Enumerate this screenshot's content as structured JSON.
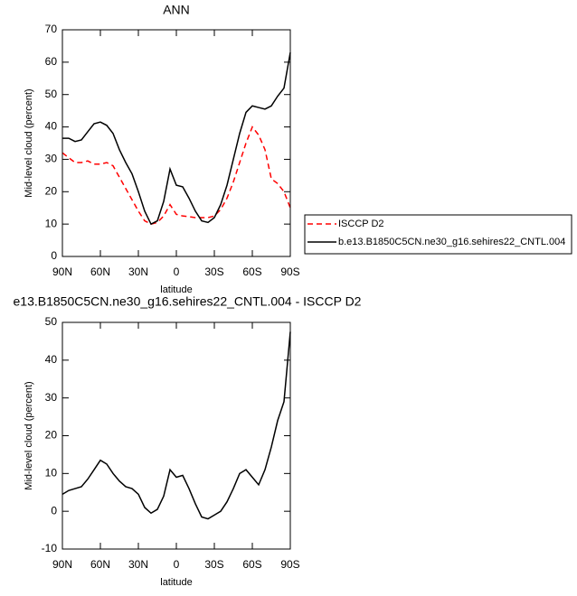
{
  "chart_data": [
    {
      "type": "line",
      "title": "ANN",
      "xlabel": "latitude",
      "ylabel": "Mid-level cloud (percent)",
      "x": [
        90,
        85,
        80,
        75,
        70,
        65,
        60,
        55,
        50,
        45,
        40,
        35,
        30,
        25,
        20,
        15,
        10,
        5,
        0,
        -5,
        -10,
        -15,
        -20,
        -25,
        -30,
        -35,
        -40,
        -45,
        -50,
        -55,
        -60,
        -65,
        -70,
        -75,
        -80,
        -85,
        -90
      ],
      "xlim": [
        90,
        -90
      ],
      "xticks": [
        {
          "value": 90,
          "label": "90N"
        },
        {
          "value": 60,
          "label": "60N"
        },
        {
          "value": 30,
          "label": "30N"
        },
        0,
        {
          "value": -30,
          "label": "30S"
        },
        {
          "value": -60,
          "label": "60S"
        },
        {
          "value": -90,
          "label": "90S"
        }
      ],
      "ylim": [
        0,
        70
      ],
      "yticks": [
        0,
        10,
        20,
        30,
        40,
        50,
        60,
        70
      ],
      "legend": "outside-right",
      "series": [
        {
          "name": "ISCCP D2",
          "color": "#ff0000",
          "dash": true,
          "values": [
            32,
            30.5,
            29,
            29,
            29.5,
            28.5,
            28.5,
            29,
            28,
            24.5,
            21,
            17.5,
            14,
            11,
            10,
            10.5,
            12.5,
            16,
            13,
            12.5,
            12.3,
            12,
            12,
            12,
            12.5,
            14.5,
            18,
            23,
            29,
            35,
            40,
            37.5,
            33,
            24,
            22.5,
            20,
            15
          ]
        },
        {
          "name": "b.e13.B1850C5CN.ne30_g16.sehires22_CNTL.004",
          "color": "#000000",
          "dash": false,
          "values": [
            36.5,
            36.5,
            35.5,
            36,
            38.5,
            41,
            41.5,
            40.5,
            38,
            33,
            29,
            25.5,
            20,
            14,
            10,
            11,
            17,
            27,
            22,
            21.5,
            18,
            14,
            11,
            10.5,
            12,
            16,
            22,
            30,
            38,
            44.5,
            46.5,
            46,
            45.5,
            46.5,
            49.5,
            52,
            63
          ]
        }
      ]
    },
    {
      "type": "line",
      "title": "e13.B1850C5CN.ne30_g16.sehires22_CNTL.004 - ISCCP D2",
      "xlabel": "latitude",
      "ylabel": "Mid-level cloud (percent)",
      "x": [
        90,
        85,
        80,
        75,
        70,
        65,
        60,
        55,
        50,
        45,
        40,
        35,
        30,
        25,
        20,
        15,
        10,
        5,
        0,
        -5,
        -10,
        -15,
        -20,
        -25,
        -30,
        -35,
        -40,
        -45,
        -50,
        -55,
        -60,
        -65,
        -70,
        -75,
        -80,
        -85,
        -90
      ],
      "xlim": [
        90,
        -90
      ],
      "xticks": [
        {
          "value": 90,
          "label": "90N"
        },
        {
          "value": 60,
          "label": "60N"
        },
        {
          "value": 30,
          "label": "30N"
        },
        0,
        {
          "value": -30,
          "label": "30S"
        },
        {
          "value": -60,
          "label": "60S"
        },
        {
          "value": -90,
          "label": "90S"
        }
      ],
      "ylim": [
        -10,
        50
      ],
      "yticks": [
        -10,
        0,
        10,
        20,
        30,
        40,
        50
      ],
      "series": [
        {
          "color": "#000000",
          "dash": false,
          "values": [
            4.5,
            5.5,
            6,
            6.5,
            8.5,
            11,
            13.5,
            12.5,
            10,
            8,
            6.5,
            6,
            4.5,
            1,
            -0.5,
            0.5,
            4,
            11,
            9,
            9.5,
            6,
            2,
            -1.5,
            -2,
            -1,
            0,
            2.5,
            6,
            10,
            11,
            9,
            7,
            11,
            17,
            24,
            29,
            47.5
          ]
        }
      ]
    }
  ]
}
